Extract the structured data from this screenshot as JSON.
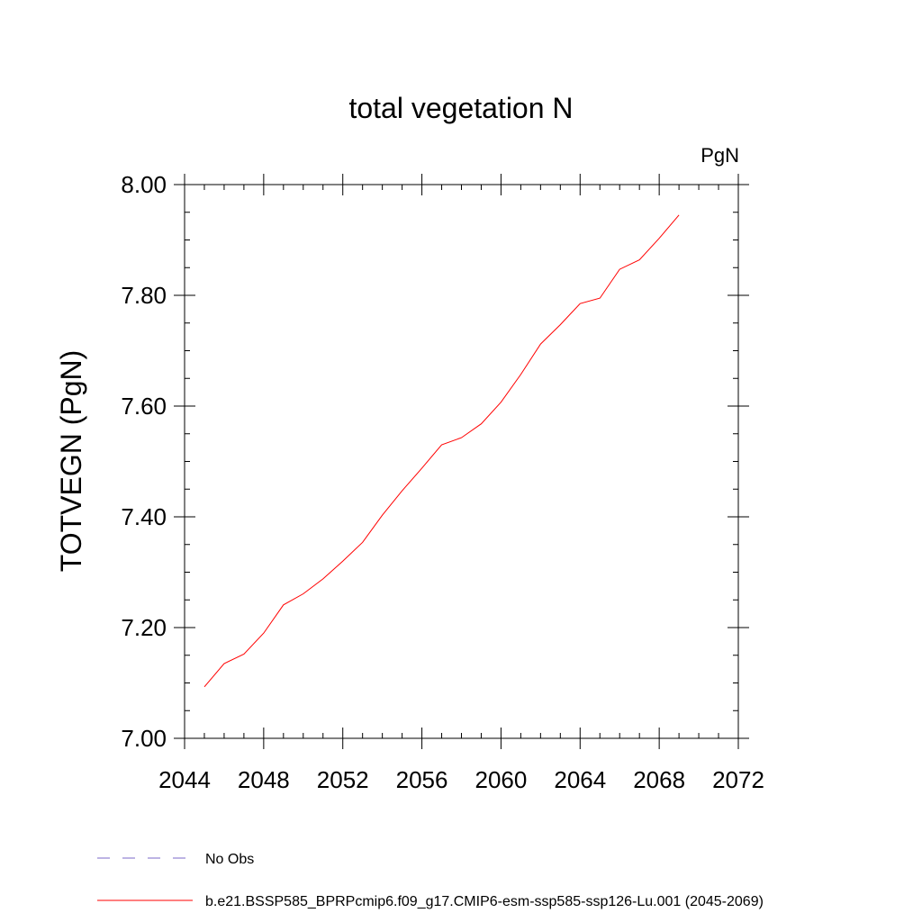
{
  "chart_data": {
    "type": "line",
    "title": "total vegetation N",
    "units_label": "PgN",
    "ylabel": "TOTVEGN  (PgN)",
    "xlabel": "",
    "xlim": [
      2044,
      2072
    ],
    "ylim": [
      7.0,
      8.0
    ],
    "x_ticks": [
      2044,
      2048,
      2052,
      2056,
      2060,
      2064,
      2068,
      2072
    ],
    "y_ticks": [
      7.0,
      7.2,
      7.4,
      7.6,
      7.8,
      8.0
    ],
    "x_tick_labels": [
      "2044",
      "2048",
      "2052",
      "2056",
      "2060",
      "2064",
      "2068",
      "2072"
    ],
    "y_tick_labels": [
      "7.00",
      "7.20",
      "7.40",
      "7.60",
      "7.80",
      "8.00"
    ],
    "grid": false,
    "legend_placement": "bottom",
    "series": [
      {
        "name": "b.e21.BSSP585_BPRPcmip6.f09_g17.CMIP6-esm-ssp585-ssp126-Lu.001 (2045-2069)",
        "color": "#ff0000",
        "x": [
          2045,
          2046,
          2047,
          2048,
          2049,
          2050,
          2051,
          2052,
          2053,
          2054,
          2055,
          2056,
          2057,
          2058,
          2059,
          2060,
          2061,
          2062,
          2063,
          2064,
          2065,
          2066,
          2067,
          2068,
          2069
        ],
        "y": [
          7.093,
          7.135,
          7.152,
          7.19,
          7.241,
          7.261,
          7.288,
          7.32,
          7.354,
          7.403,
          7.447,
          7.488,
          7.53,
          7.543,
          7.568,
          7.607,
          7.657,
          7.712,
          7.747,
          7.785,
          7.795,
          7.847,
          7.864,
          7.903,
          7.945
        ]
      }
    ],
    "legend": [
      {
        "label": "No Obs",
        "style": "dashed",
        "color": "#7b68c8"
      },
      {
        "label": "b.e21.BSSP585_BPRPcmip6.f09_g17.CMIP6-esm-ssp585-ssp126-Lu.001 (2045-2069)",
        "style": "solid",
        "color": "#ff0000"
      }
    ]
  }
}
